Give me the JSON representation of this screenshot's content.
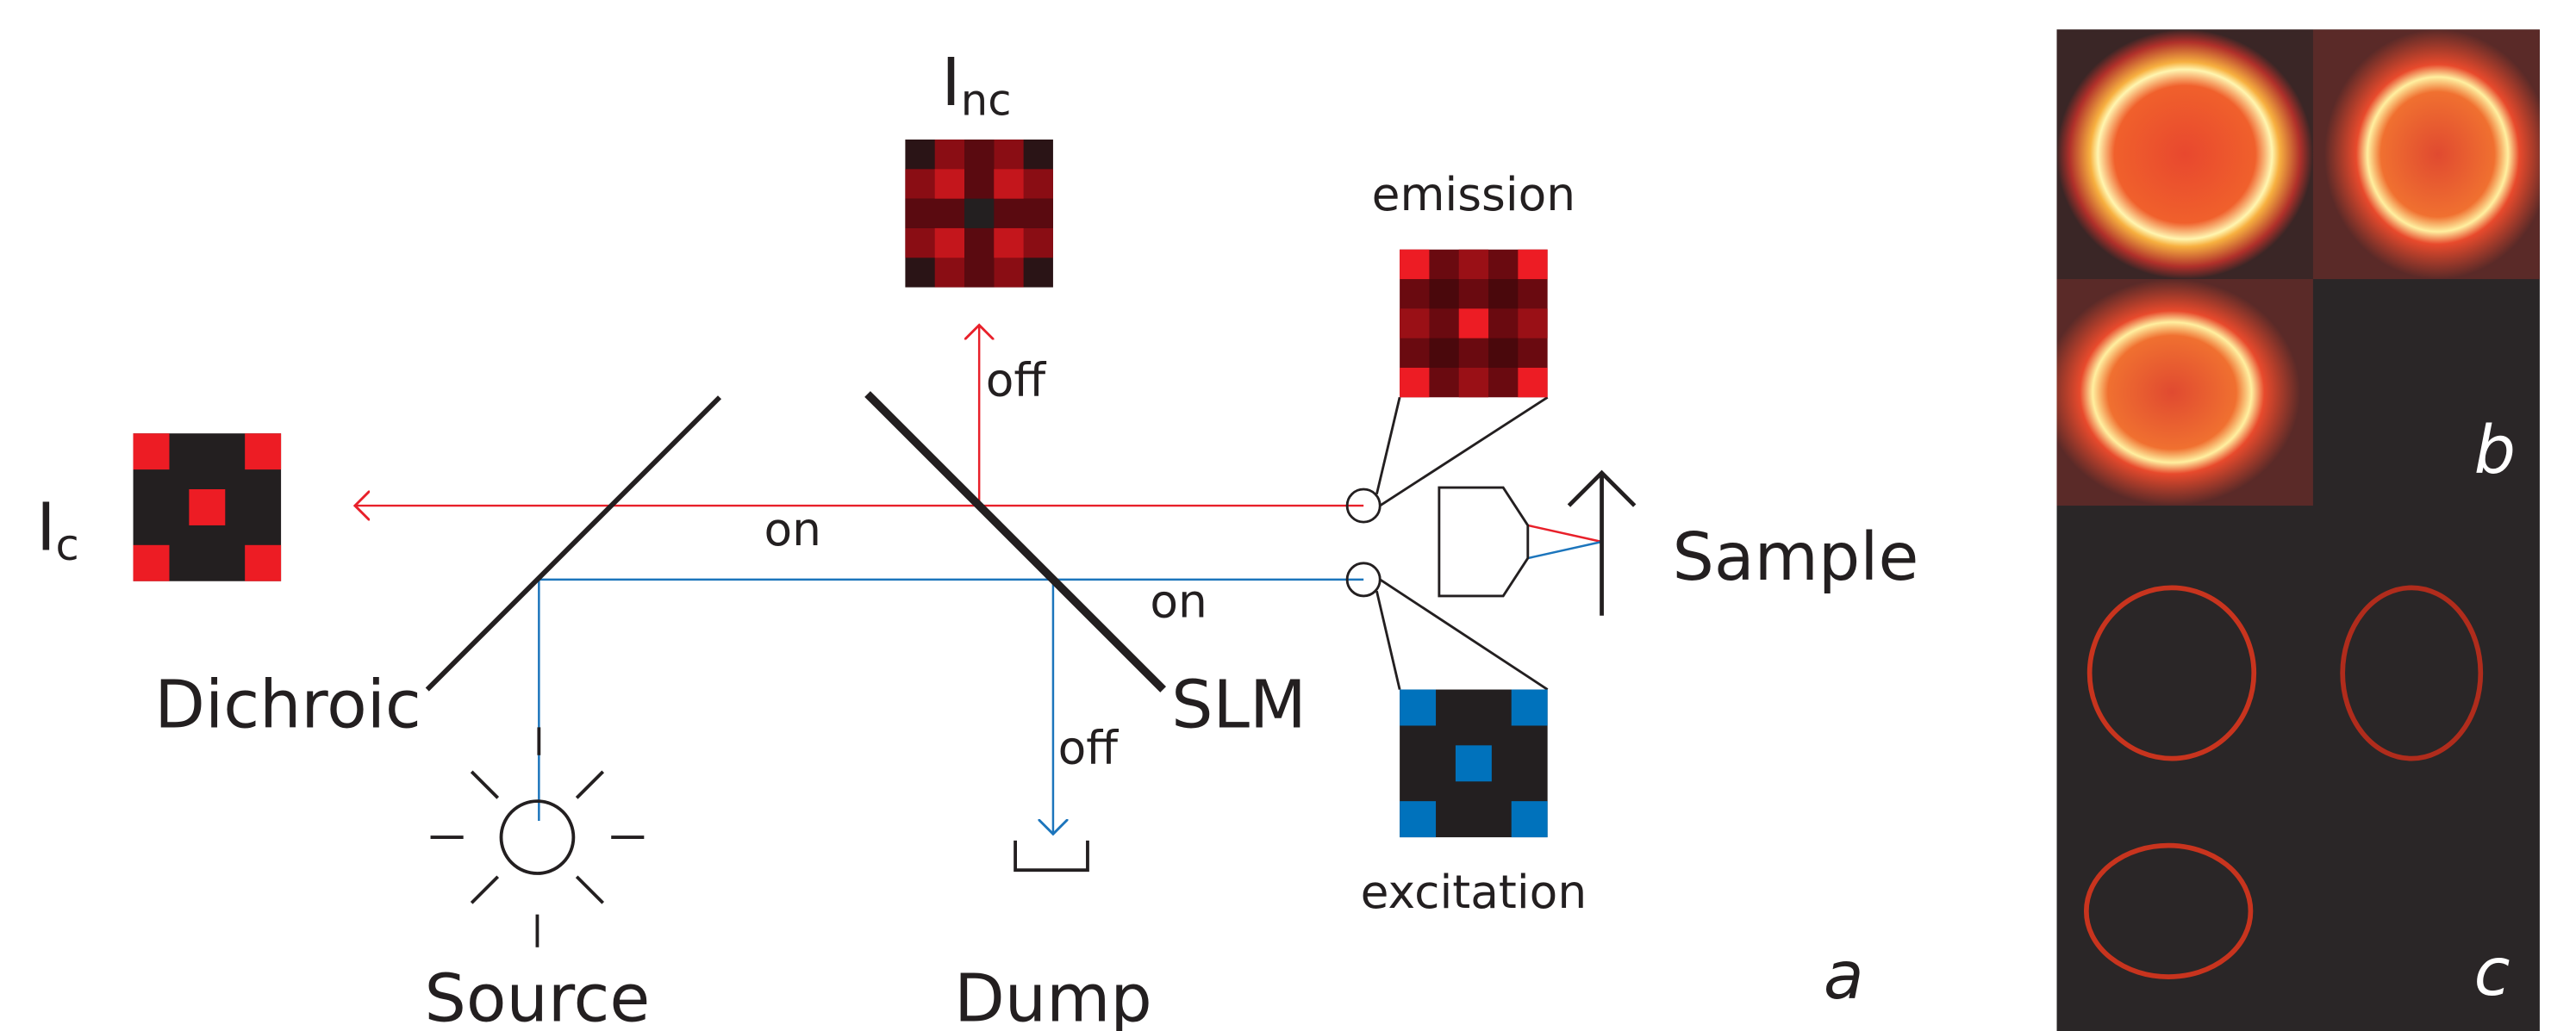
{
  "labels": {
    "i_nc": {
      "main": "I",
      "sub": "nc"
    },
    "i_c": {
      "main": "I",
      "sub": "c"
    },
    "emission": "emission",
    "excitation": "excitation",
    "sample": "Sample",
    "dichroic": "Dichroic",
    "slm": "SLM",
    "source": "Source",
    "dump": "Dump",
    "on_red": "on",
    "on_blue": "on",
    "off_red": "off",
    "off_blue": "off"
  },
  "panels": {
    "a": "a",
    "b": "b",
    "c": "c"
  }
}
